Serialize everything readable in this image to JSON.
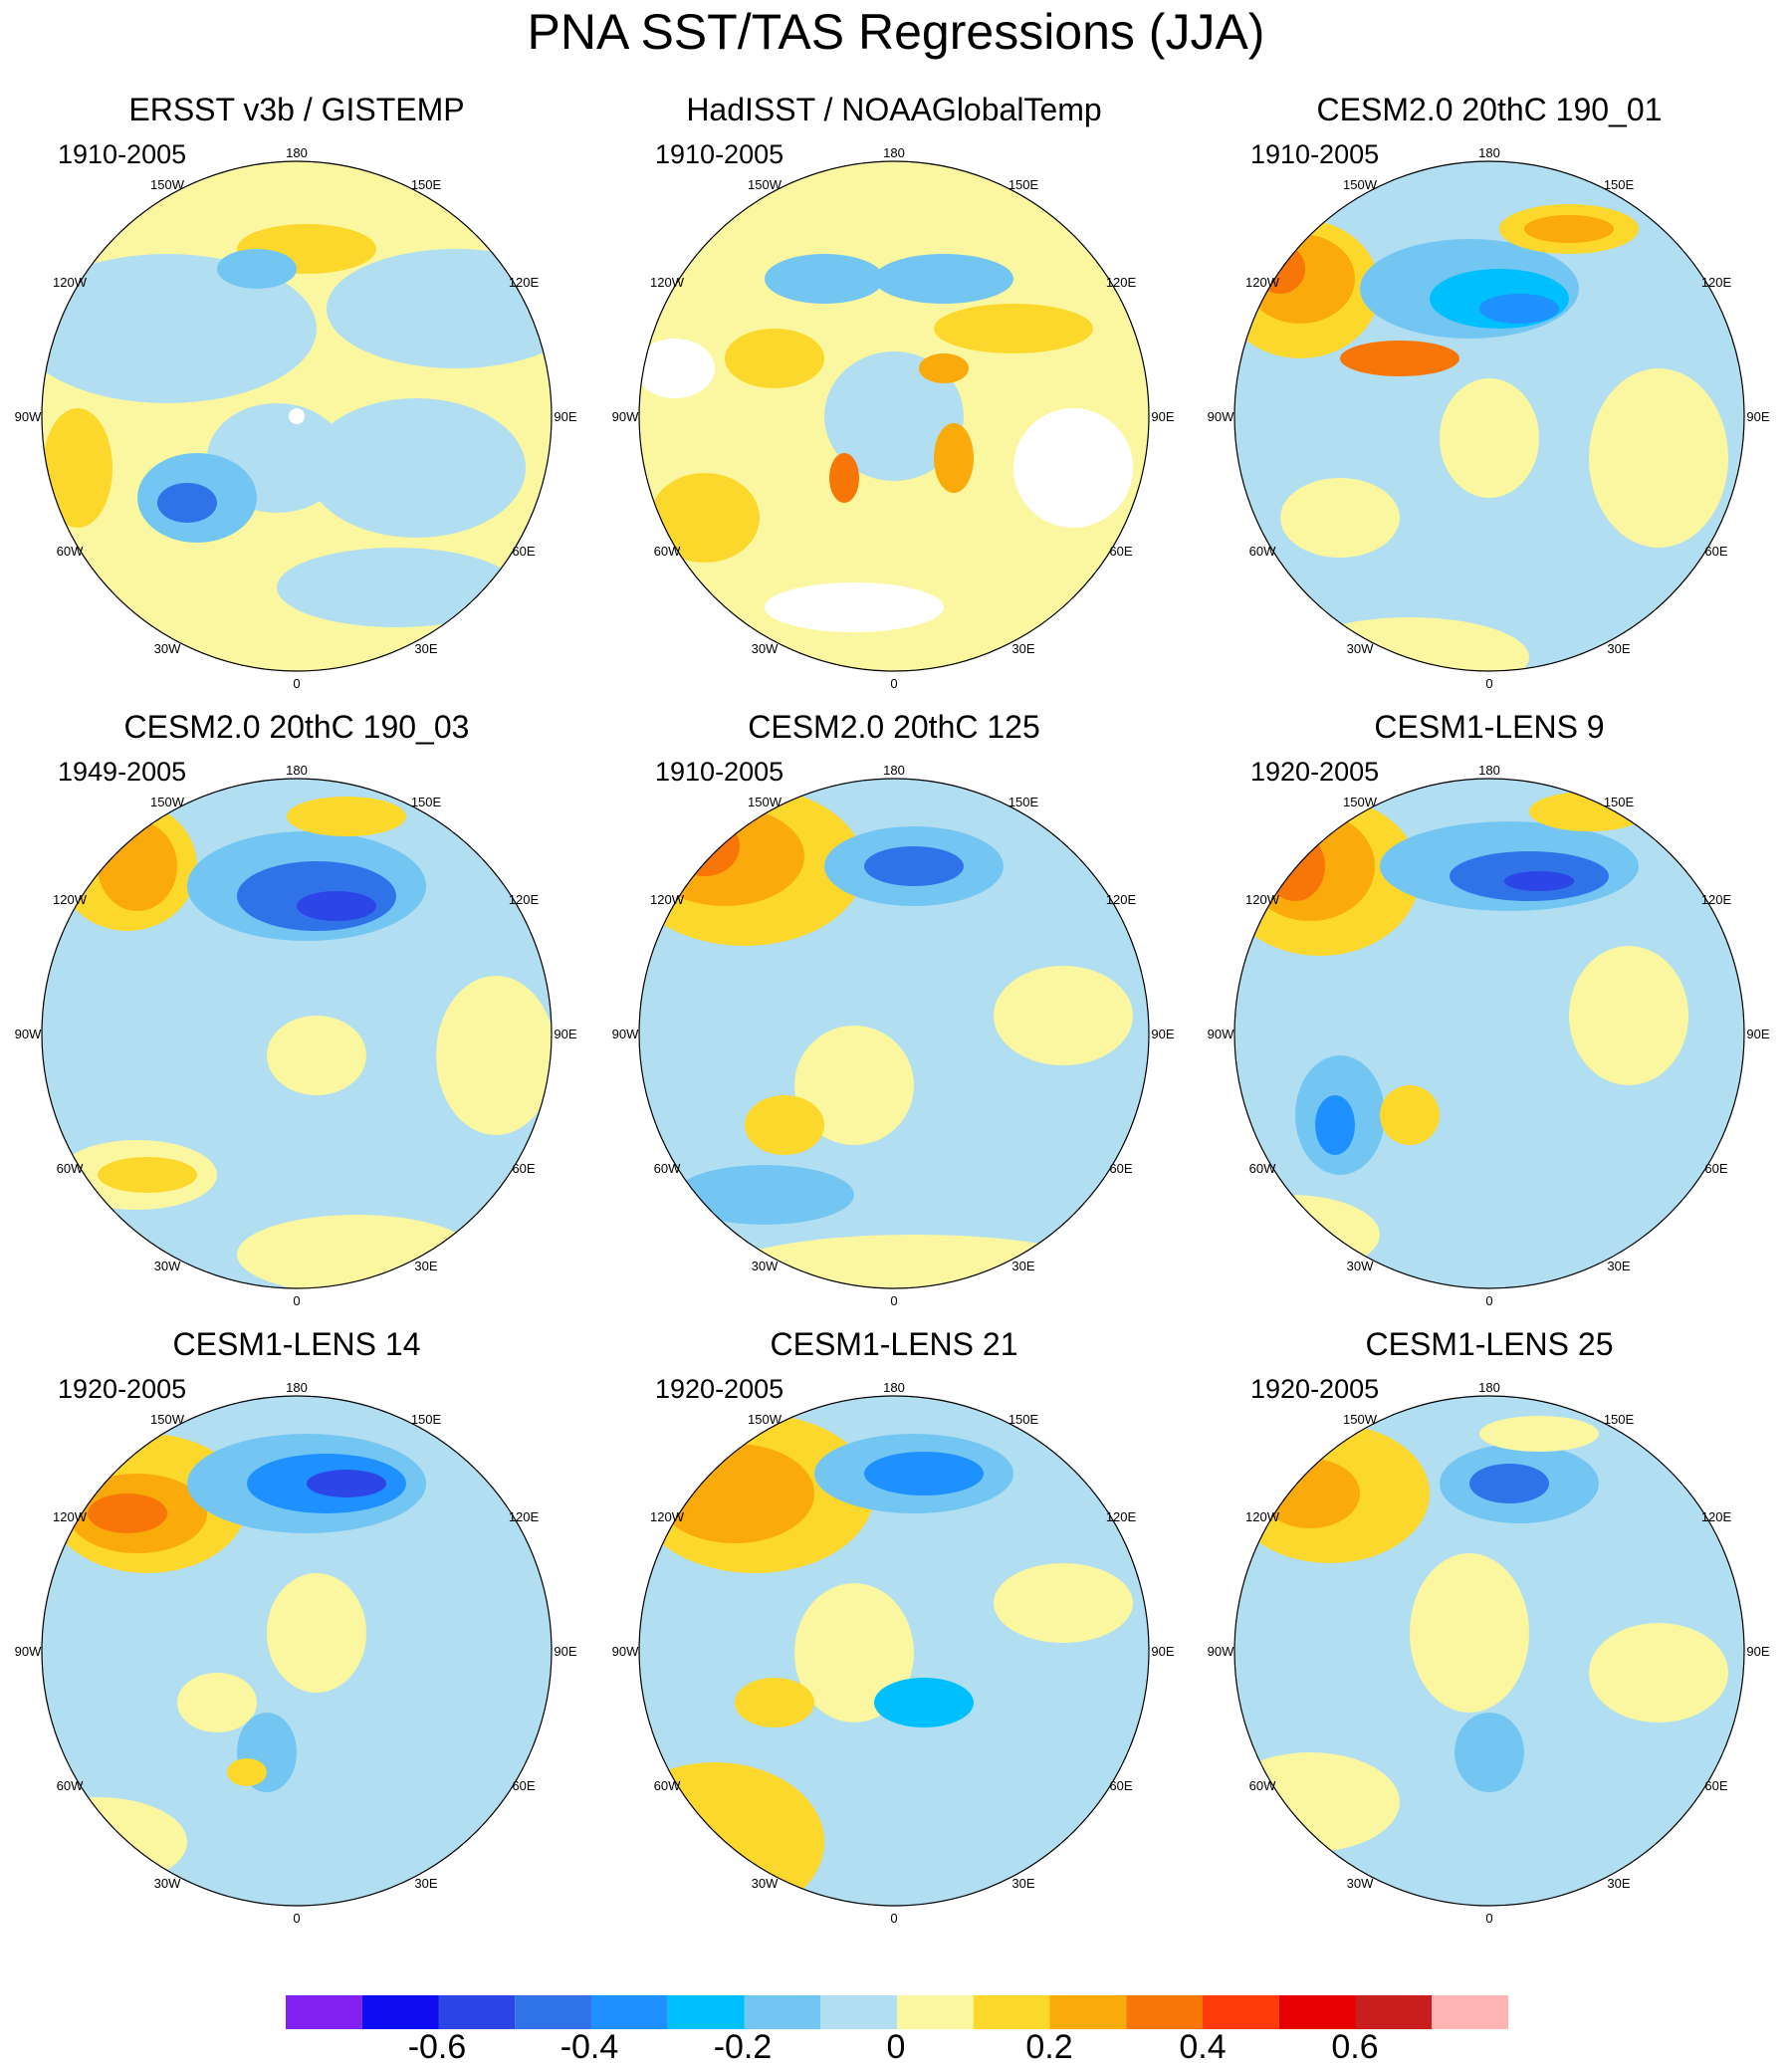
{
  "title": "PNA SST/TAS Regressions (JJA)",
  "longitude_labels": [
    "180",
    "150E",
    "120E",
    "90E",
    "60E",
    "30E",
    "0",
    "30W",
    "60W",
    "90W",
    "120W",
    "150W"
  ],
  "panels": [
    {
      "title": "ERSST v3b / GISTEMP",
      "period": "1910-2005"
    },
    {
      "title": "HadISST / NOAAGlobalTemp",
      "period": "1910-2005"
    },
    {
      "title": "CESM2.0 20thC 190_01",
      "period": "1910-2005"
    },
    {
      "title": "CESM2.0 20thC 190_03",
      "period": "1949-2005"
    },
    {
      "title": "CESM2.0 20thC 125",
      "period": "1910-2005"
    },
    {
      "title": "CESM1-LENS 9",
      "period": "1920-2005"
    },
    {
      "title": "CESM1-LENS 14",
      "period": "1920-2005"
    },
    {
      "title": "CESM1-LENS 21",
      "period": "1920-2005"
    },
    {
      "title": "CESM1-LENS 25",
      "period": "1920-2005"
    }
  ],
  "colorbar": {
    "colors": [
      "#8120ef",
      "#0d0df0",
      "#2b45e6",
      "#3073e8",
      "#1e90ff",
      "#00bfff",
      "#74c6f2",
      "#b2def2",
      "#fbf7a0",
      "#fcd72c",
      "#faaa0a",
      "#f87607",
      "#ff3b0a",
      "#e60000",
      "#c81e1e",
      "#ffb4b4"
    ],
    "labels": [
      "-0.6",
      "-0.4",
      "-0.2",
      "0",
      "0.2",
      "0.4",
      "0.6"
    ]
  }
}
